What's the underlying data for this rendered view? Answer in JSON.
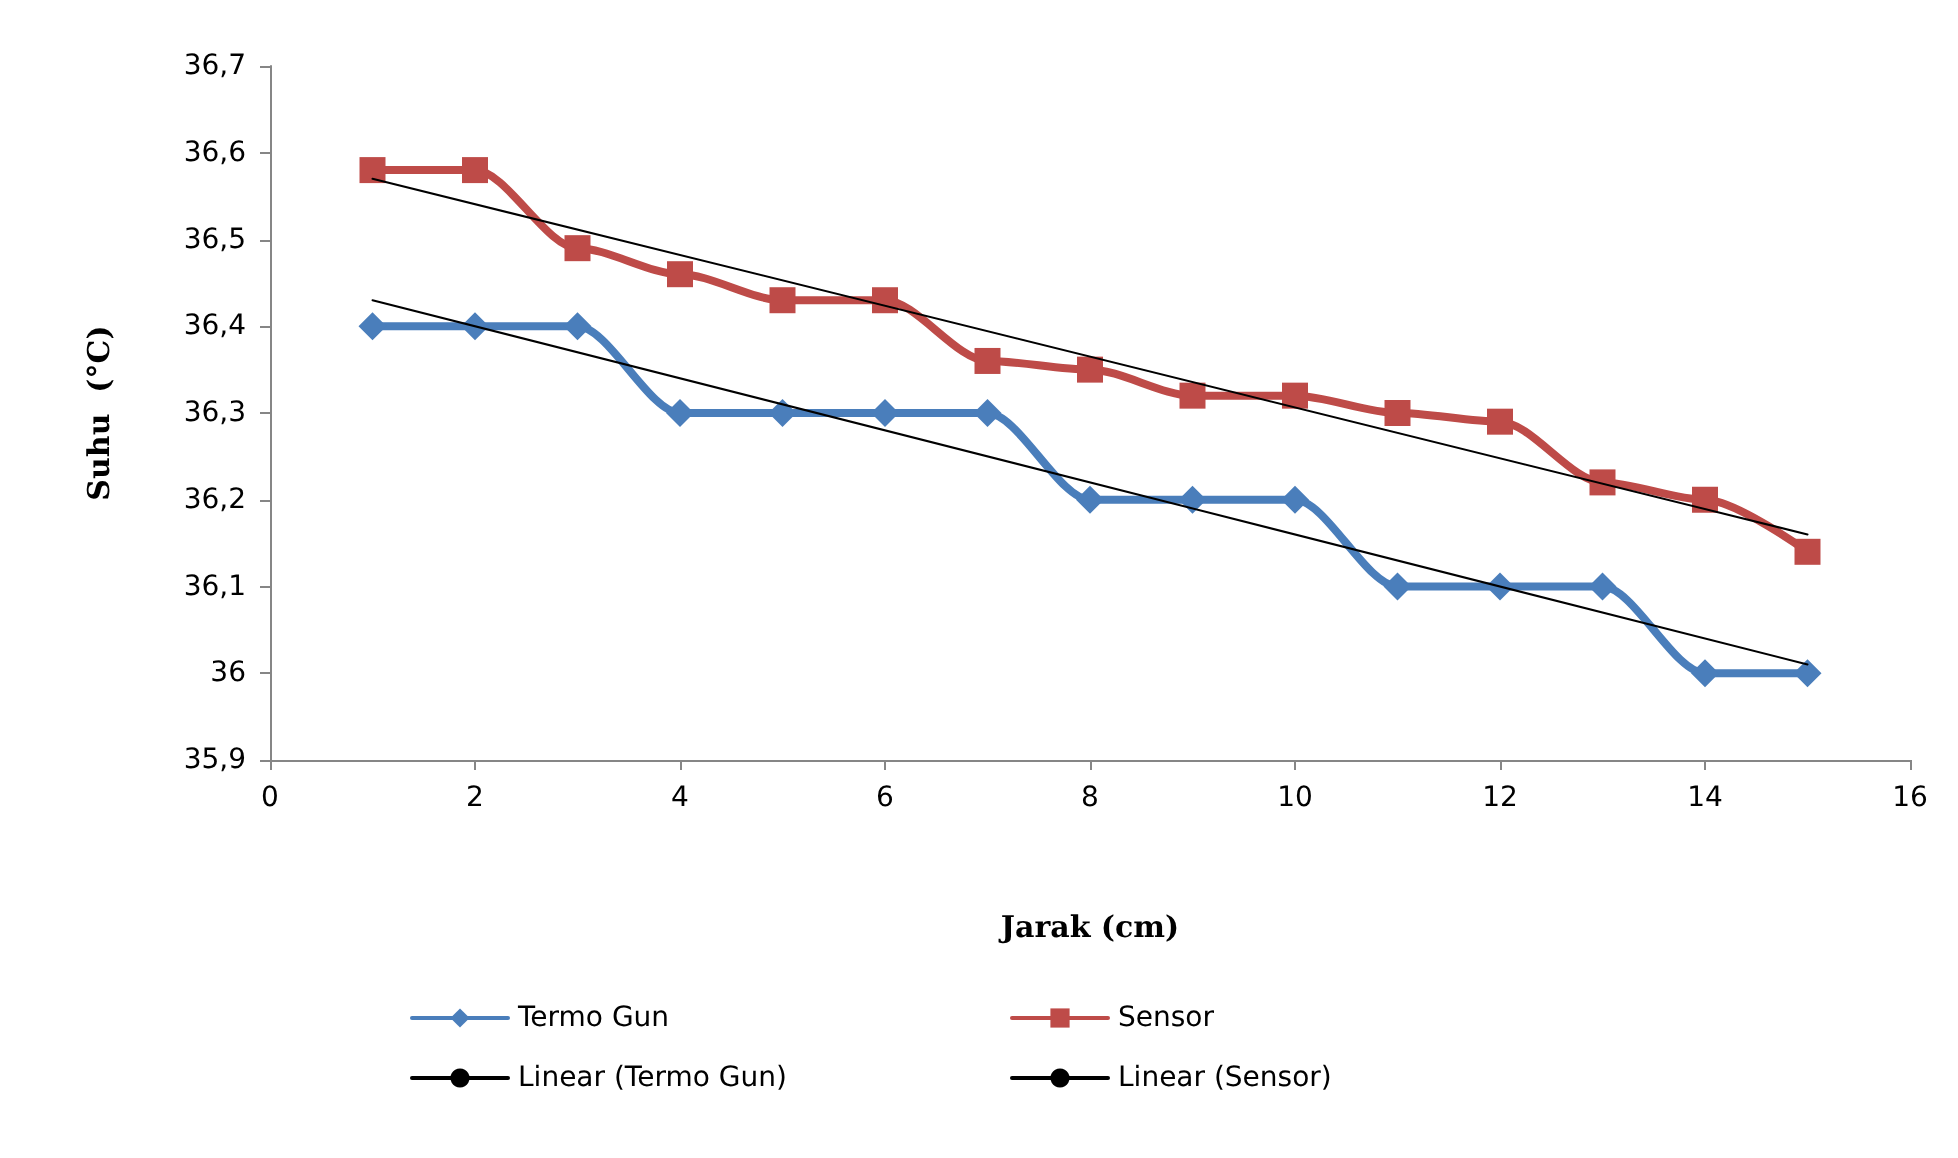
{
  "chart_data": {
    "type": "line",
    "xlabel": "Jarak (cm)",
    "ylabel": "Suhu  (°C)",
    "xlim": [
      0,
      16
    ],
    "xticks": [
      0,
      2,
      4,
      6,
      8,
      10,
      12,
      14,
      16
    ],
    "ylim": [
      35.9,
      36.7
    ],
    "yticks": [
      {
        "value": 35.9,
        "label": "35,9"
      },
      {
        "value": 36,
        "label": "36"
      },
      {
        "value": 36.1,
        "label": "36,1"
      },
      {
        "value": 36.2,
        "label": "36,2"
      },
      {
        "value": 36.3,
        "label": "36,3"
      },
      {
        "value": 36.4,
        "label": "36,4"
      },
      {
        "value": 36.5,
        "label": "36,5"
      },
      {
        "value": 36.6,
        "label": "36,6"
      },
      {
        "value": 36.7,
        "label": "36,7"
      }
    ],
    "legend": "bottom",
    "line_style": "solid",
    "series": [
      {
        "name": "Termo Gun",
        "color": "#4a7ebb",
        "marker": "diamond",
        "x": [
          1,
          2,
          3,
          4,
          5,
          6,
          7,
          8,
          9,
          10,
          11,
          12,
          13,
          14,
          15
        ],
        "values": [
          36.4,
          36.4,
          36.4,
          36.3,
          36.3,
          36.3,
          36.3,
          36.2,
          36.2,
          36.2,
          36.1,
          36.1,
          36.1,
          36.0,
          36.0
        ]
      },
      {
        "name": "Sensor",
        "color": "#be4b48",
        "marker": "square",
        "x": [
          1,
          2,
          3,
          4,
          5,
          6,
          7,
          8,
          9,
          10,
          11,
          12,
          13,
          14,
          15
        ],
        "values": [
          36.58,
          36.58,
          36.49,
          36.46,
          36.43,
          36.43,
          36.36,
          36.35,
          36.32,
          36.32,
          36.3,
          36.29,
          36.22,
          36.2,
          36.14
        ]
      },
      {
        "name": "Linear (Termo Gun)",
        "color": "#000000",
        "marker": "none",
        "x": [
          1,
          15
        ],
        "values": [
          36.43,
          36.01
        ]
      },
      {
        "name": "Linear (Sensor)",
        "color": "#000000",
        "marker": "none",
        "x": [
          1,
          15
        ],
        "values": [
          36.57,
          36.16
        ]
      }
    ]
  }
}
